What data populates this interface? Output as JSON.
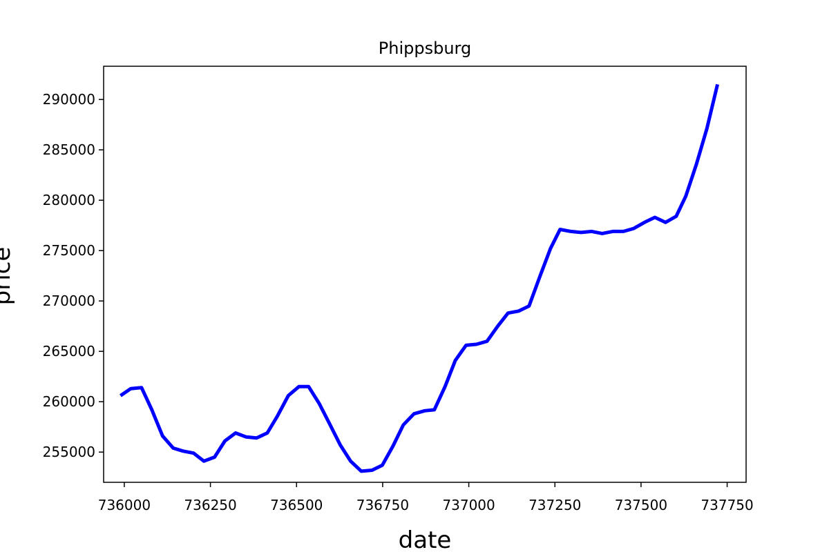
{
  "chart_data": {
    "type": "line",
    "title": "Phippsburg",
    "xlabel": "date",
    "ylabel": "price",
    "xlim": [
      735940,
      737805
    ],
    "ylim": [
      252000,
      293300
    ],
    "xticks": [
      736000,
      736250,
      736500,
      736750,
      737000,
      737250,
      737500,
      737750
    ],
    "yticks": [
      255000,
      260000,
      265000,
      270000,
      275000,
      280000,
      285000,
      290000
    ],
    "grid": false,
    "series": [
      {
        "color": "#0000ff",
        "x": [
          735989,
          736019,
          736050,
          736080,
          736111,
          736142,
          736170,
          736201,
          736231,
          736262,
          736292,
          736323,
          736354,
          736384,
          736415,
          736445,
          736476,
          736507,
          736535,
          736566,
          736596,
          736627,
          736657,
          736688,
          736719,
          736749,
          736780,
          736810,
          736841,
          736872,
          736900,
          736931,
          736961,
          736992,
          737022,
          737053,
          737084,
          737114,
          737145,
          737175,
          737206,
          737237,
          737265,
          737296,
          737326,
          737357,
          737387,
          737418,
          737449,
          737479,
          737510,
          737540,
          737571,
          737602,
          737630,
          737661,
          737691,
          737722
        ],
        "y": [
          260600,
          261300,
          261400,
          259200,
          256600,
          255400,
          255100,
          254900,
          254100,
          254500,
          256100,
          256900,
          256500,
          256400,
          256900,
          258600,
          260600,
          261500,
          261500,
          259800,
          257800,
          255700,
          254100,
          253100,
          253200,
          253700,
          255600,
          257700,
          258800,
          259100,
          259200,
          261500,
          264100,
          265600,
          265700,
          266000,
          267500,
          268800,
          269000,
          269500,
          272400,
          275200,
          277100,
          276900,
          276800,
          276900,
          276700,
          276900,
          276900,
          277200,
          277800,
          278300,
          277800,
          278400,
          280400,
          283600,
          287100,
          291500
        ]
      }
    ]
  }
}
